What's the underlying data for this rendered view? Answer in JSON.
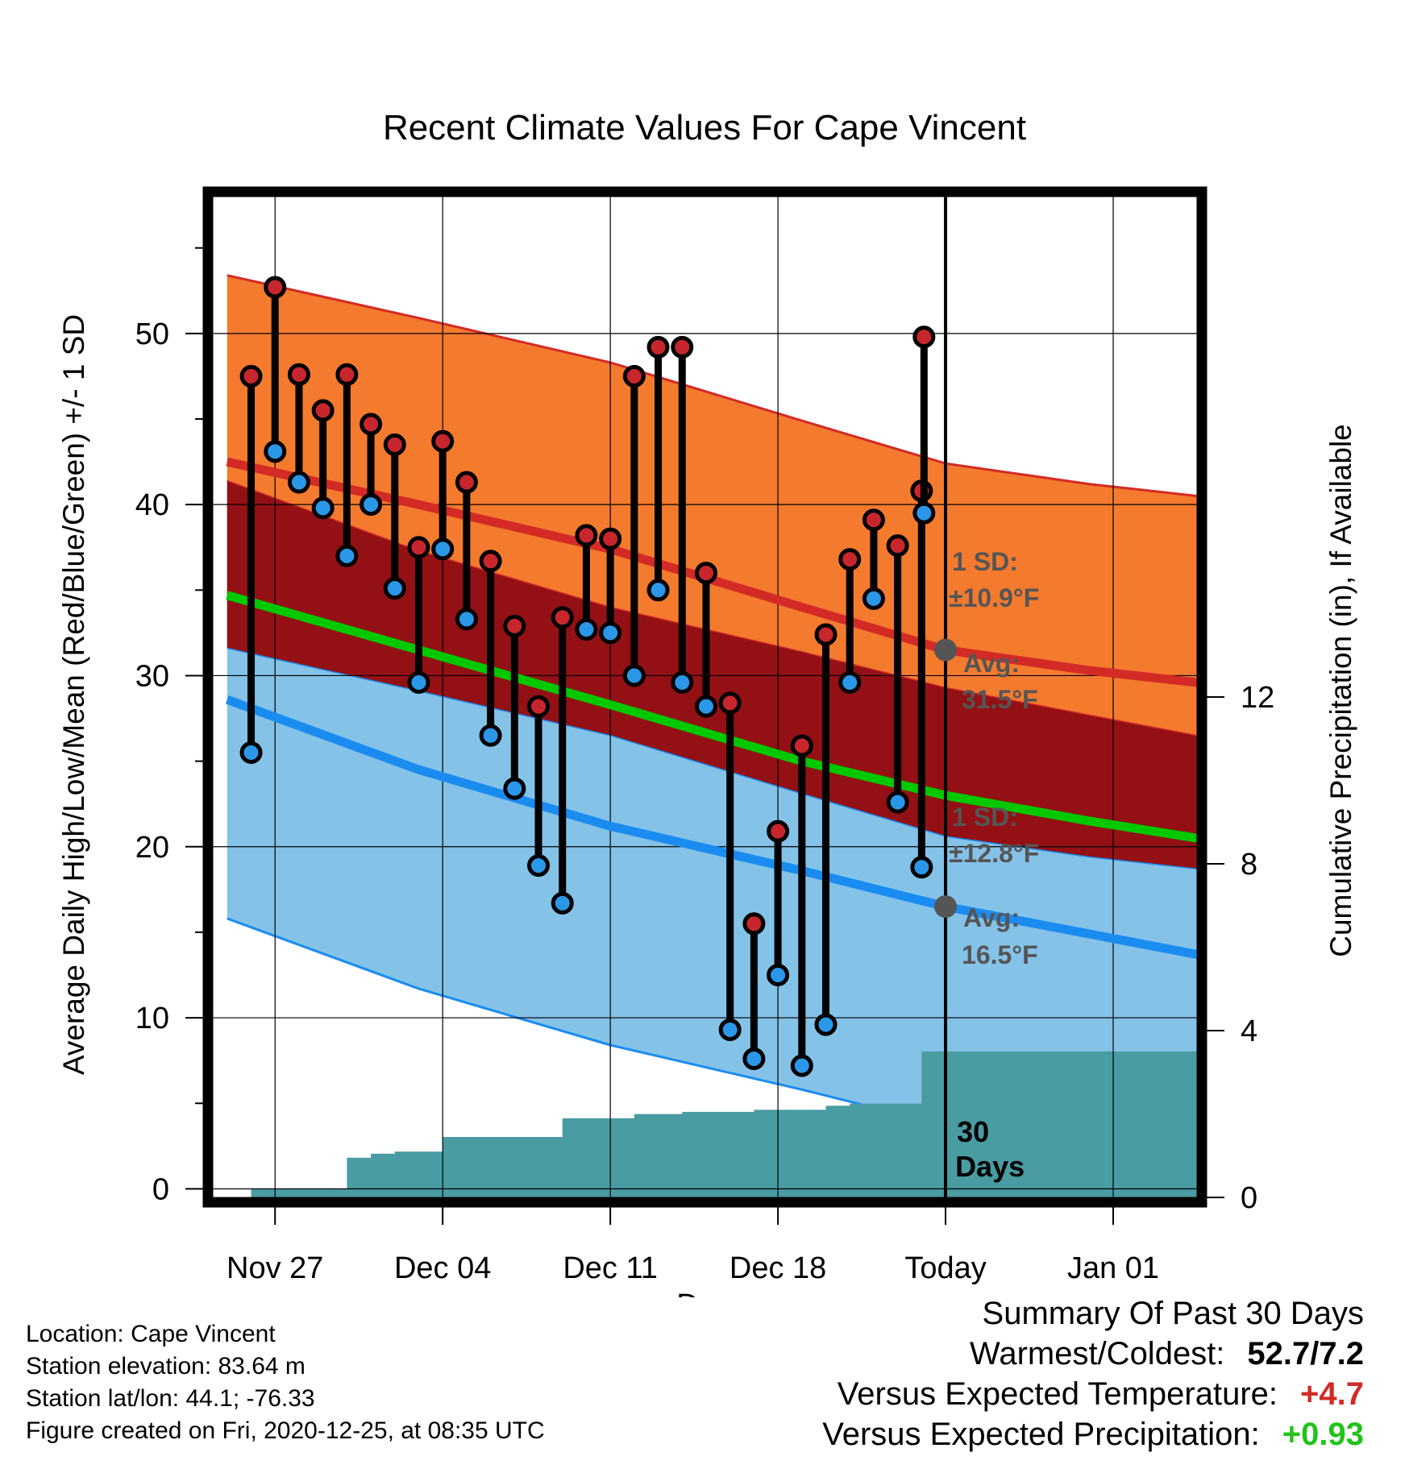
{
  "chart_data": {
    "type": "line",
    "title": "Recent Climate Values For Cape Vincent",
    "xlabel": "Day",
    "ylabel_left": "Average Daily High/Low/Mean (Red/Blue/Green) +/- 1 SD",
    "ylabel_right": "Cumulative Precipitation (in), If Available",
    "x_tick_labels": [
      "Nov 27",
      "Dec 04",
      "Dec 11",
      "Dec 18",
      "Today",
      "Jan 01"
    ],
    "x_tick_days": [
      2,
      9,
      16,
      23,
      30,
      37
    ],
    "xlim": [
      -0.6,
      40.5
    ],
    "ylim_left": [
      -0.5,
      58
    ],
    "y_ticks_left": [
      0,
      10,
      20,
      30,
      40,
      50
    ],
    "ylim_right": [
      0,
      24
    ],
    "y_ticks_right": [
      0,
      4,
      8,
      12
    ],
    "observed_days": [
      1,
      2,
      3,
      4,
      5,
      6,
      7,
      8,
      9,
      10,
      11,
      12,
      13,
      14,
      15,
      16,
      17,
      18,
      19,
      20,
      21,
      22,
      23,
      24,
      25,
      26,
      27,
      28,
      29
    ],
    "observed_high": [
      47.5,
      52.7,
      47.6,
      45.5,
      47.6,
      44.7,
      43.5,
      37.5,
      43.7,
      41.3,
      36.7,
      32.9,
      28.2,
      33.4,
      38.2,
      38.0,
      47.5,
      49.2,
      49.2,
      36.0,
      28.4,
      15.5,
      20.9,
      25.9,
      32.4,
      36.8,
      39.1,
      37.6,
      40.8
    ],
    "observed_low": [
      25.5,
      43.1,
      41.3,
      39.8,
      37.0,
      40.0,
      35.1,
      29.6,
      37.4,
      33.3,
      26.5,
      23.4,
      18.9,
      16.7,
      32.7,
      32.5,
      30.0,
      35.0,
      29.6,
      28.2,
      9.3,
      7.6,
      12.5,
      7.2,
      9.6,
      29.6,
      34.5,
      22.6,
      18.8
    ],
    "today_high": 49.8,
    "today_low": 39.5,
    "normal_days": [
      0,
      8,
      16,
      24,
      30,
      36,
      40.5
    ],
    "normal_high": [
      42.5,
      40.0,
      37.4,
      34.0,
      31.5,
      30.3,
      29.6
    ],
    "normal_low": [
      28.6,
      24.5,
      21.2,
      18.6,
      16.5,
      14.9,
      13.7
    ],
    "normal_mean": [
      34.7,
      31.5,
      28.3,
      25.0,
      23.0,
      21.5,
      20.5
    ],
    "high_sd": 10.9,
    "low_sd": 12.8,
    "precip_days": [
      0,
      1,
      2,
      4,
      5,
      6,
      7,
      8,
      9,
      10,
      11,
      12,
      13,
      14,
      15,
      16,
      17,
      18,
      19,
      20,
      21,
      22,
      23,
      24,
      25,
      26,
      27,
      28,
      29,
      30,
      40.5
    ],
    "precip_cumulative": [
      0.0,
      0.2,
      0.2,
      0.2,
      0.95,
      1.05,
      1.1,
      1.1,
      1.45,
      1.45,
      1.45,
      1.45,
      1.45,
      1.9,
      1.9,
      1.9,
      2.0,
      2.0,
      2.05,
      2.05,
      2.05,
      2.1,
      2.1,
      2.1,
      2.2,
      2.25,
      2.25,
      2.25,
      3.5,
      3.5,
      3.5
    ],
    "annotation_high_sd": "1 SD:",
    "annotation_high_sd_value": "±10.9°F",
    "annotation_high_avg": "Avg:",
    "annotation_high_avg_value": "31.5°F",
    "annotation_low_sd": "1 SD:",
    "annotation_low_sd_value": "±12.8°F",
    "annotation_low_avg": "Avg:",
    "annotation_low_avg_value": "16.5°F",
    "annotation_days_number": "30",
    "annotation_days_label": "Days",
    "colors": {
      "high_band": "#f47a2e",
      "overlap_band": "#931015",
      "low_band": "#84c2e8",
      "high_line": "#d32a26",
      "low_line": "#1a8cf0",
      "mean_line": "#00c800",
      "precip": "#489ca2",
      "high_marker": "#c8262d",
      "low_marker": "#2b97e8",
      "annotation": "#555555"
    }
  },
  "footer": {
    "location": "Location: Cape Vincent",
    "elevation": "Station elevation: 83.64 m",
    "latlon": "Station lat/lon: 44.1; -76.33",
    "created": "Figure created on Fri, 2020-12-25, at 08:35 UTC"
  },
  "summary": {
    "title": "Summary Of Past 30 Days",
    "warmest_label": "Warmest/Coldest:",
    "warmest_value": "52.7/7.2",
    "temp_label": "Versus Expected Temperature:",
    "temp_value": "+4.7",
    "temp_color": "#d32a26",
    "precip_label": "Versus Expected Precipitation:",
    "precip_value": "+0.93",
    "precip_color": "#22c31a"
  }
}
